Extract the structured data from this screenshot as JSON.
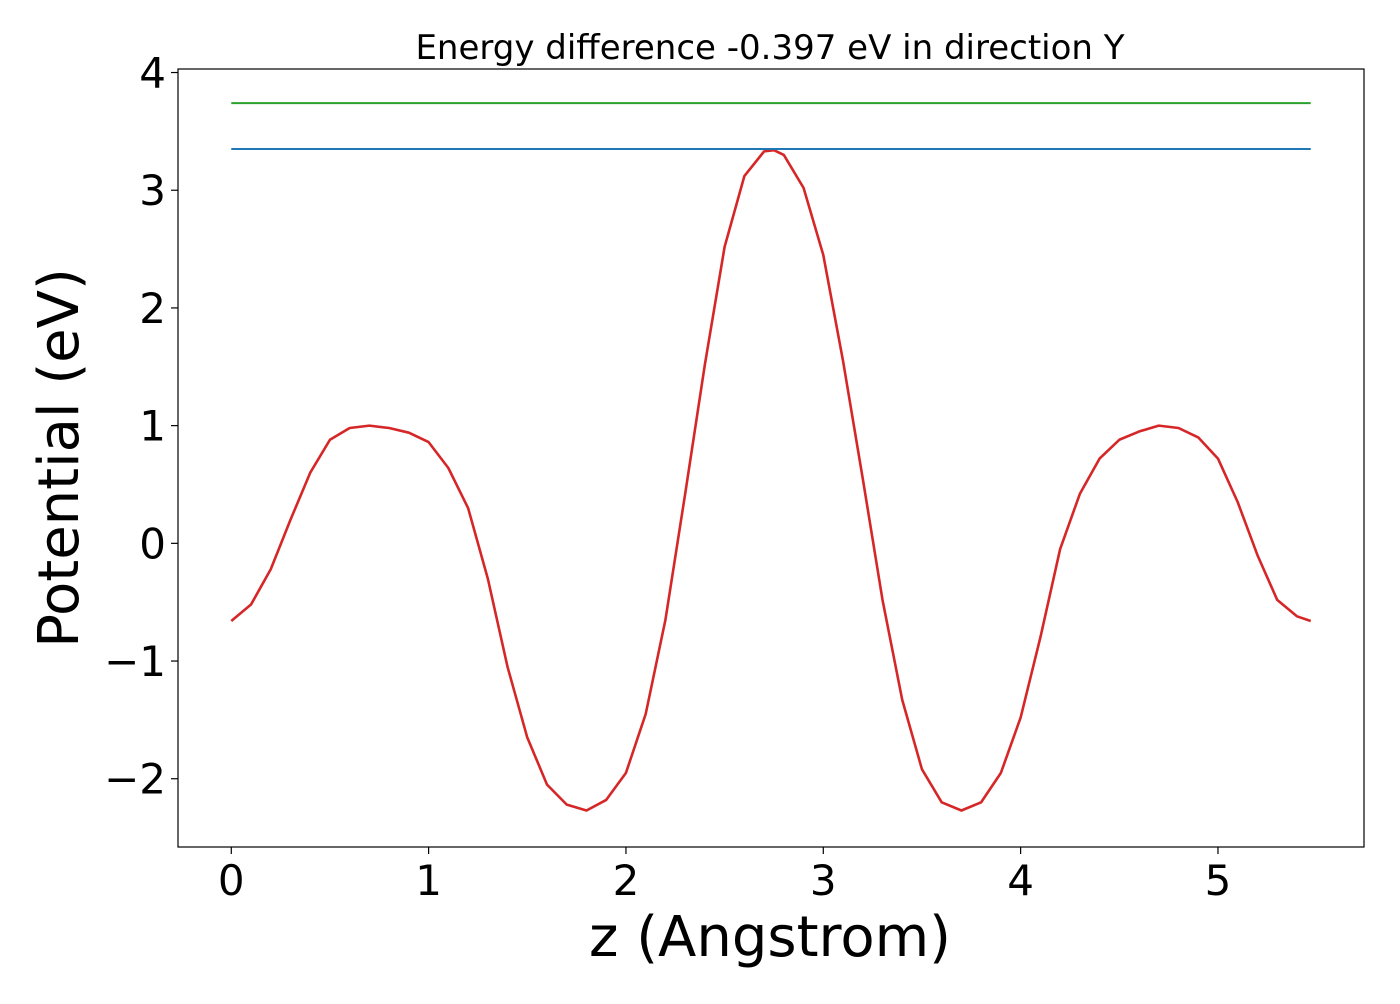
{
  "chart_data": {
    "type": "line",
    "title": "Energy difference -0.397 eV in direction Y",
    "xlabel": "z (Angstrom)",
    "ylabel": "Potential (eV)",
    "xlim": [
      -0.27,
      5.74
    ],
    "ylim": [
      -2.58,
      4.03
    ],
    "xticks": [
      0,
      1,
      2,
      3,
      4,
      5
    ],
    "yticks": [
      -2,
      -1,
      0,
      1,
      2,
      3,
      4
    ],
    "xtick_labels": [
      "0",
      "1",
      "2",
      "3",
      "4",
      "5"
    ],
    "ytick_labels": [
      "−2",
      "−1",
      "0",
      "1",
      "2",
      "3",
      "4"
    ],
    "grid": false,
    "series": [
      {
        "color": "#d62728",
        "x": [
          0,
          0.1,
          0.2,
          0.3,
          0.4,
          0.5,
          0.6,
          0.7,
          0.8,
          0.9,
          1.0,
          1.1,
          1.2,
          1.3,
          1.4,
          1.5,
          1.6,
          1.7,
          1.8,
          1.9,
          2.0,
          2.1,
          2.2,
          2.3,
          2.4,
          2.5,
          2.6,
          2.7,
          2.75,
          2.8,
          2.9,
          3.0,
          3.1,
          3.2,
          3.3,
          3.4,
          3.5,
          3.6,
          3.7,
          3.8,
          3.9,
          4.0,
          4.1,
          4.2,
          4.3,
          4.4,
          4.5,
          4.6,
          4.7,
          4.8,
          4.9,
          5.0,
          5.1,
          5.2,
          5.3,
          5.4,
          5.47
        ],
        "y": [
          -0.66,
          -0.52,
          -0.22,
          0.2,
          0.6,
          0.88,
          0.98,
          1.0,
          0.98,
          0.94,
          0.86,
          0.64,
          0.3,
          -0.3,
          -1.05,
          -1.65,
          -2.05,
          -2.22,
          -2.27,
          -2.18,
          -1.95,
          -1.45,
          -0.65,
          0.42,
          1.52,
          2.52,
          3.12,
          3.33,
          3.34,
          3.3,
          3.02,
          2.45,
          1.55,
          0.55,
          -0.48,
          -1.33,
          -1.92,
          -2.2,
          -2.27,
          -2.2,
          -1.95,
          -1.48,
          -0.8,
          -0.05,
          0.42,
          0.72,
          0.88,
          0.95,
          1.0,
          0.98,
          0.9,
          0.72,
          0.35,
          -0.1,
          -0.48,
          -0.62,
          -0.66
        ]
      },
      {
        "color": "#1f77b4",
        "x": [
          0,
          5.47
        ],
        "y": [
          3.35,
          3.35
        ]
      },
      {
        "color": "#2ca02c",
        "x": [
          0,
          5.47
        ],
        "y": [
          3.74,
          3.74
        ]
      }
    ]
  }
}
